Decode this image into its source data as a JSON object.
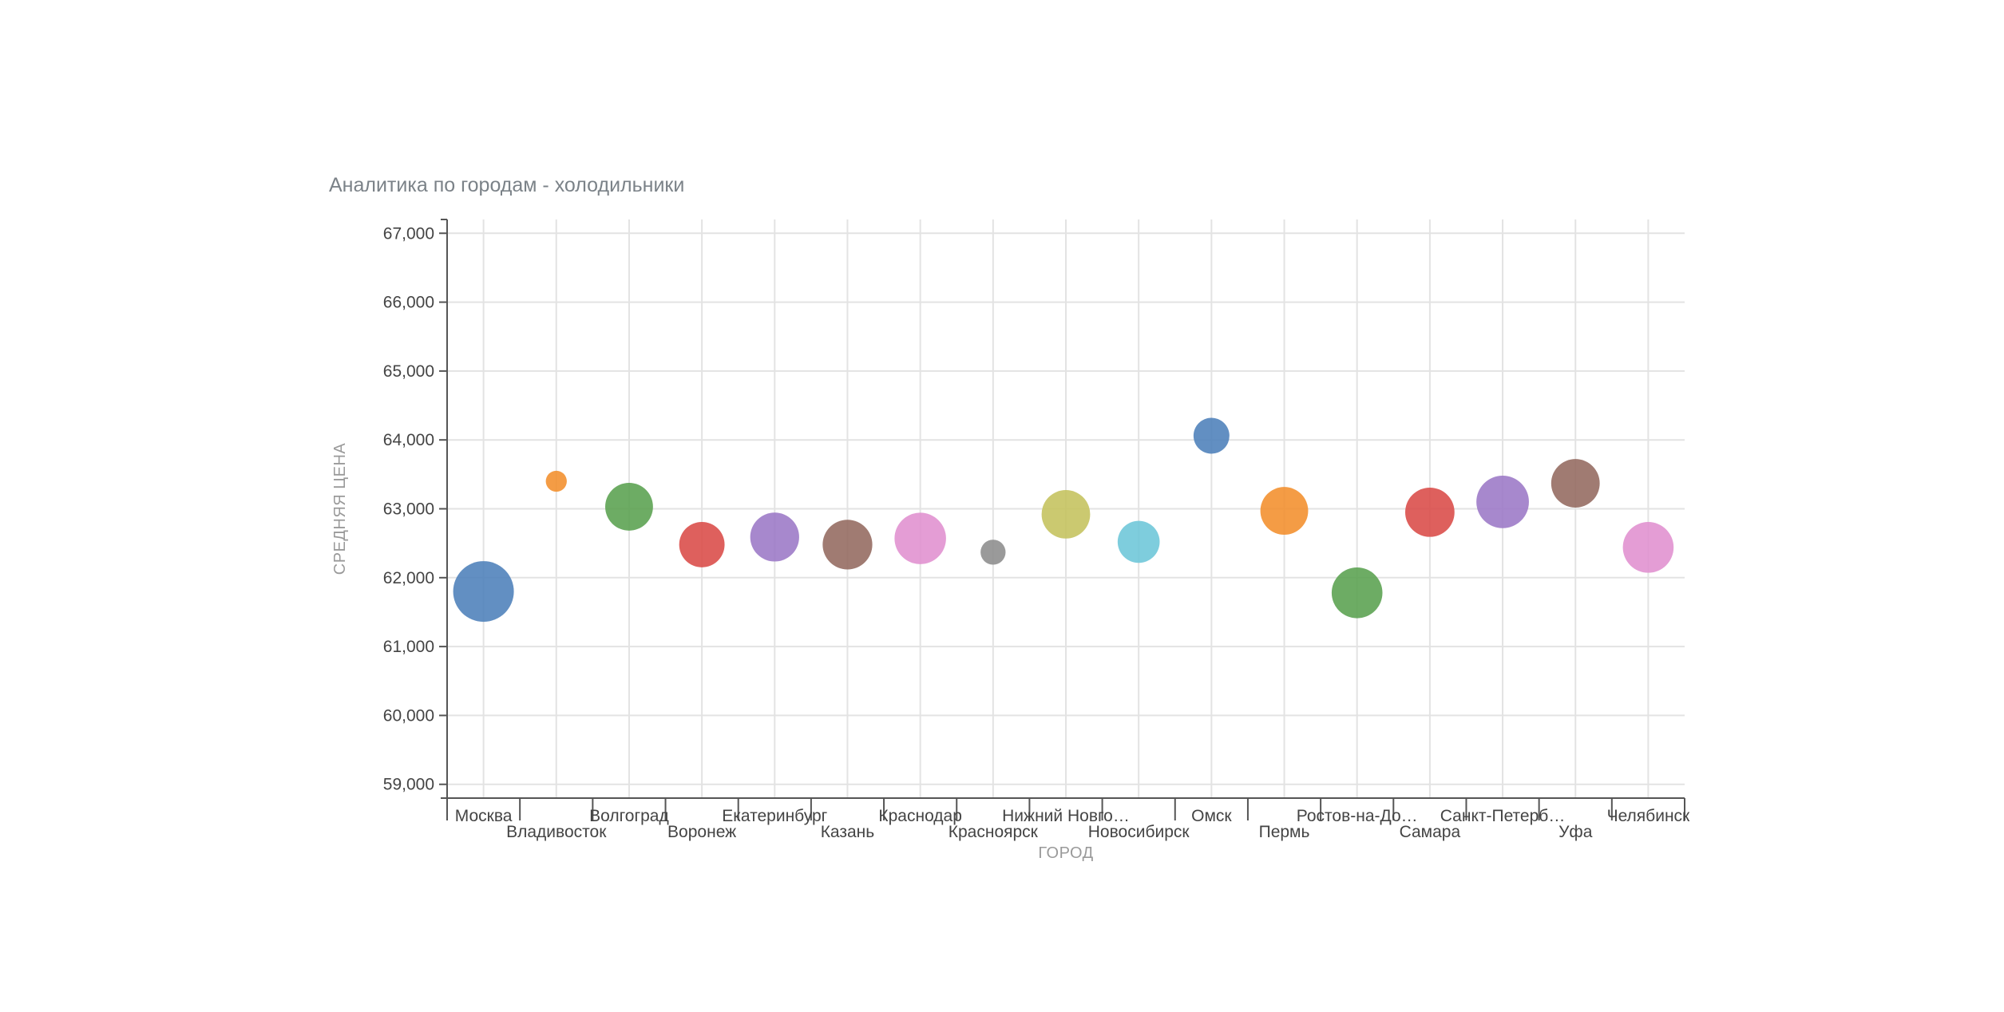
{
  "chart_data": {
    "type": "scatter",
    "title": "Аналитика по городам - холодильники",
    "xlabel": "ГОРОД",
    "ylabel": "СРЕДНЯЯ ЦЕНА",
    "ylim": [
      58800,
      67200
    ],
    "yticks": [
      59000,
      60000,
      61000,
      62000,
      63000,
      64000,
      65000,
      66000,
      67000
    ],
    "ytick_labels": [
      "59,000",
      "60,000",
      "61,000",
      "62,000",
      "63,000",
      "64,000",
      "65,000",
      "66,000",
      "67,000"
    ],
    "grid": true,
    "categories": [
      "Москва",
      "Владивосток",
      "Волгоград",
      "Воронеж",
      "Екатеринбург",
      "Казань",
      "Краснодар",
      "Красноярск",
      "Нижний Новго…",
      "Новосибирск",
      "Омск",
      "Пермь",
      "Ростов-на-До…",
      "Самара",
      "Санкт-Петерб…",
      "Уфа",
      "Челябинск"
    ],
    "points": [
      {
        "category": "Москва",
        "y": 61800,
        "size": 1.0,
        "color": "#4c7fb9"
      },
      {
        "category": "Владивосток",
        "y": 63400,
        "size": 0.12,
        "color": "#f28e2b"
      },
      {
        "category": "Волгоград",
        "y": 63030,
        "size": 0.62,
        "color": "#59a14f"
      },
      {
        "category": "Воронеж",
        "y": 62480,
        "size": 0.56,
        "color": "#d94a47"
      },
      {
        "category": "Екатеринбург",
        "y": 62590,
        "size": 0.65,
        "color": "#9b77c6"
      },
      {
        "category": "Казань",
        "y": 62480,
        "size": 0.67,
        "color": "#93695e"
      },
      {
        "category": "Краснодар",
        "y": 62570,
        "size": 0.72,
        "color": "#e08fcf"
      },
      {
        "category": "Красноярск",
        "y": 62370,
        "size": 0.17,
        "color": "#8c8c8c"
      },
      {
        "category": "Нижний Новго…",
        "y": 62920,
        "size": 0.64,
        "color": "#c4c25c"
      },
      {
        "category": "Новосибирск",
        "y": 62520,
        "size": 0.48,
        "color": "#6cc6d8"
      },
      {
        "category": "Омск",
        "y": 64060,
        "size": 0.35,
        "color": "#4c7fb9"
      },
      {
        "category": "Пермь",
        "y": 62970,
        "size": 0.62,
        "color": "#f28e2b"
      },
      {
        "category": "Ростов-на-До…",
        "y": 61780,
        "size": 0.7,
        "color": "#59a14f"
      },
      {
        "category": "Самара",
        "y": 62950,
        "size": 0.66,
        "color": "#d94a47"
      },
      {
        "category": "Санкт-Петерб…",
        "y": 63100,
        "size": 0.75,
        "color": "#9b77c6"
      },
      {
        "category": "Уфа",
        "y": 63370,
        "size": 0.64,
        "color": "#93695e"
      },
      {
        "category": "Челябинск",
        "y": 62440,
        "size": 0.7,
        "color": "#e08fcf"
      }
    ]
  }
}
